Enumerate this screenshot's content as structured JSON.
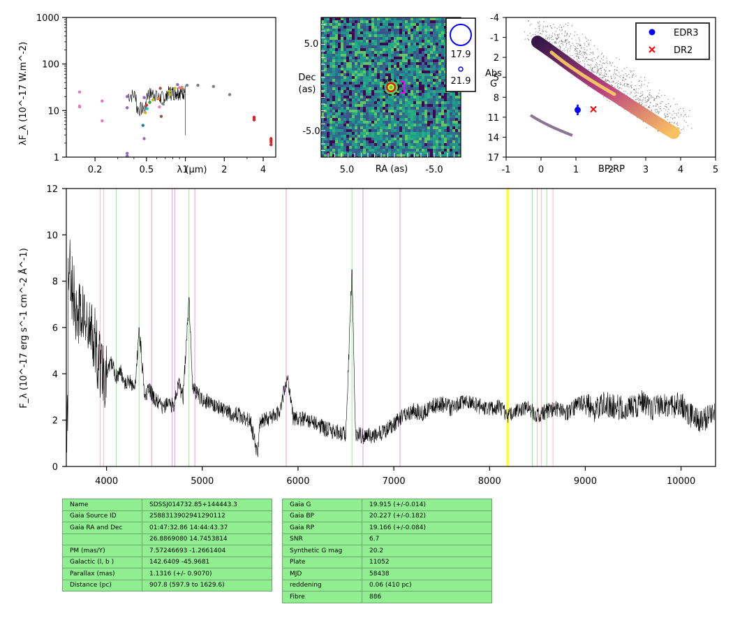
{
  "sed": {
    "ylabel": "λF_λ (10^-17 W.m^-2)",
    "xlabel": "λ (μm)",
    "xticks": [
      "0.2",
      "0.5",
      "1",
      "2",
      "4"
    ],
    "xtick_values": [
      0.2,
      0.5,
      1,
      2,
      4
    ],
    "yticks": [
      "1",
      "10",
      "100",
      "1000"
    ],
    "ytick_values": [
      1,
      10,
      100,
      1000
    ]
  },
  "image": {
    "ylabel": "Dec (as)",
    "xlabel": "RA (as)",
    "xticks": [
      "5.0",
      "-5.0"
    ],
    "yticks": [
      "5.0",
      "-5.0"
    ],
    "legend": [
      "17.9",
      "21.9"
    ]
  },
  "hrd": {
    "xlabel": "BP-RP",
    "ylabel": "Abs G",
    "xticks": [
      "-1",
      "0",
      "1",
      "2",
      "3",
      "4",
      "5"
    ],
    "yticks": [
      "-4",
      "-1",
      "2",
      "5",
      "8",
      "11",
      "14",
      "17"
    ],
    "legend": [
      "EDR3",
      "DR2"
    ],
    "colors": {
      "edr3": "#0000ff",
      "dr2": "#ff0000"
    }
  },
  "spectrum": {
    "ylabel": "F_λ (10^-17 erg s^-1 cm^-2 Å^-1)",
    "xticks": [
      "4000",
      "5000",
      "6000",
      "7000",
      "8000",
      "9000",
      "10000"
    ],
    "yticks": [
      "0",
      "2",
      "4",
      "6",
      "8",
      "10",
      "12"
    ]
  },
  "chart_data": [
    {
      "type": "scatter",
      "panel": "sed",
      "xscale": "log",
      "yscale": "log",
      "xlim": [
        0.12,
        5.0
      ],
      "ylim": [
        1,
        1000
      ],
      "points": [
        {
          "x": 0.152,
          "y": 25,
          "c": "#e377c2"
        },
        {
          "x": 0.152,
          "y": 12.5,
          "c": "#e377c2"
        },
        {
          "x": 0.152,
          "y": 12,
          "c": "#e377c2"
        },
        {
          "x": 0.227,
          "y": 16,
          "c": "#e377c2"
        },
        {
          "x": 0.227,
          "y": 6,
          "c": "#e377c2"
        },
        {
          "x": 0.355,
          "y": 20,
          "c": "#9467bd"
        },
        {
          "x": 0.355,
          "y": 11.5,
          "c": "#9467bd"
        },
        {
          "x": 0.355,
          "y": 1.2,
          "c": "#9467bd"
        },
        {
          "x": 0.355,
          "y": 1.05,
          "c": "#9467bd"
        },
        {
          "x": 0.47,
          "y": 4.8,
          "c": "#1f77b4"
        },
        {
          "x": 0.48,
          "y": 2.5,
          "c": "#9467bd"
        },
        {
          "x": 0.48,
          "y": 19,
          "c": "#9467bd"
        },
        {
          "x": 0.49,
          "y": 9,
          "c": "#bcbd22"
        },
        {
          "x": 0.5,
          "y": 13,
          "c": "#d62728"
        },
        {
          "x": 0.505,
          "y": 11,
          "c": "#17becf"
        },
        {
          "x": 0.53,
          "y": 15,
          "c": "#2ca02c"
        },
        {
          "x": 0.56,
          "y": 17,
          "c": "#bcbd22"
        },
        {
          "x": 0.62,
          "y": 18,
          "c": "#ff7f0e"
        },
        {
          "x": 0.63,
          "y": 12,
          "c": "#e377c2"
        },
        {
          "x": 0.64,
          "y": 30,
          "c": "#8c564b"
        },
        {
          "x": 0.65,
          "y": 7.5,
          "c": "#8c564b"
        },
        {
          "x": 0.67,
          "y": 14,
          "c": "#7f7f7f"
        },
        {
          "x": 0.75,
          "y": 26,
          "c": "#bcbd22"
        },
        {
          "x": 0.76,
          "y": 22,
          "c": "#bcbd22"
        },
        {
          "x": 0.83,
          "y": 30,
          "c": "#bcbd22"
        },
        {
          "x": 0.87,
          "y": 36,
          "c": "#9467bd"
        },
        {
          "x": 0.9,
          "y": 31,
          "c": "#e377c2"
        },
        {
          "x": 0.94,
          "y": 30,
          "c": "#ff7f0e"
        },
        {
          "x": 0.96,
          "y": 28,
          "c": "#7f7f7f"
        },
        {
          "x": 1.03,
          "y": 35,
          "c": "#7f7f7f"
        },
        {
          "x": 1.25,
          "y": 35,
          "c": "#7f7f7f"
        },
        {
          "x": 1.65,
          "y": 33,
          "c": "#7f7f7f"
        },
        {
          "x": 2.2,
          "y": 22,
          "c": "#7f7f7f"
        },
        {
          "x": 3.4,
          "y": 7.2,
          "c": "#d62728"
        },
        {
          "x": 3.4,
          "y": 6.8,
          "c": "#d62728"
        },
        {
          "x": 3.4,
          "y": 6.3,
          "c": "#d62728"
        },
        {
          "x": 4.6,
          "y": 2.5,
          "c": "#d62728"
        },
        {
          "x": 4.6,
          "y": 2.3,
          "c": "#d62728"
        },
        {
          "x": 4.6,
          "y": 2.1,
          "c": "#d62728"
        },
        {
          "x": 4.6,
          "y": 1.85,
          "c": "#d62728"
        }
      ]
    },
    {
      "type": "scatter",
      "panel": "hrd",
      "xlim": [
        -1,
        5
      ],
      "ylim": [
        17,
        -4
      ],
      "series": [
        {
          "name": "EDR3",
          "x": [
            1.05
          ],
          "y": [
            9.9
          ],
          "yerr": [
            0.8
          ],
          "marker": "circle",
          "color": "#0000ff"
        },
        {
          "name": "DR2",
          "x": [
            1.5
          ],
          "y": [
            9.8
          ],
          "marker": "x",
          "color": "#ff0000"
        }
      ]
    },
    {
      "type": "line",
      "panel": "spectrum",
      "xlim": [
        3580,
        10360
      ],
      "ylim": [
        0,
        12
      ],
      "x": [
        3600,
        3650,
        3700,
        3750,
        3800,
        3850,
        3900,
        3950,
        4000,
        4050,
        4100,
        4150,
        4200,
        4250,
        4300,
        4340,
        4400,
        4450,
        4500,
        4550,
        4600,
        4650,
        4700,
        4750,
        4800,
        4861,
        4900,
        5000,
        5100,
        5200,
        5300,
        5400,
        5500,
        5577,
        5600,
        5700,
        5800,
        5890,
        5950,
        6000,
        6100,
        6200,
        6300,
        6400,
        6500,
        6563,
        6600,
        6700,
        6800,
        6900,
        7000,
        7100,
        7200,
        7300,
        7400,
        7500,
        7600,
        7700,
        7800,
        7900,
        8000,
        8100,
        8200,
        8300,
        8400,
        8500,
        8600,
        8700,
        8800,
        8900,
        9000,
        9100,
        9200,
        9300,
        9400,
        9500,
        9600,
        9700,
        9800,
        9900,
        10000,
        10100,
        10200,
        10300
      ],
      "y": [
        9,
        7.5,
        6.3,
        6.8,
        5.6,
        5.9,
        4.8,
        4.4,
        3.9,
        4.5,
        3.9,
        4.1,
        3.6,
        3.7,
        3.4,
        6.0,
        3.1,
        3.3,
        2.9,
        2.7,
        2.5,
        2.8,
        2.6,
        3.6,
        3.0,
        7.3,
        3.4,
        2.9,
        2.7,
        2.5,
        2.3,
        2.2,
        2.0,
        0.5,
        1.9,
        2.1,
        2.3,
        3.9,
        2.1,
        2.1,
        2.0,
        1.8,
        1.6,
        1.5,
        1.4,
        8.5,
        1.4,
        1.3,
        1.35,
        1.5,
        1.8,
        2.2,
        2.4,
        2.3,
        2.6,
        2.7,
        2.5,
        2.8,
        2.7,
        2.6,
        2.5,
        2.6,
        2.2,
        2.4,
        2.5,
        2.2,
        2.4,
        2.5,
        2.3,
        2.6,
        2.8,
        2.4,
        2.7,
        2.6,
        2.5,
        2.6,
        2.8,
        2.5,
        2.7,
        2.6,
        2.7,
        2.2,
        1.9,
        2.2
      ],
      "lines": [
        {
          "x": 3934,
          "color": "#ffb6c1"
        },
        {
          "x": 3969,
          "color": "#ffb6c1"
        },
        {
          "x": 4102,
          "color": "#90ee90"
        },
        {
          "x": 4340,
          "color": "#90ee90"
        },
        {
          "x": 4471,
          "color": "#dda0dd"
        },
        {
          "x": 4686,
          "color": "#dda0dd"
        },
        {
          "x": 4713,
          "color": "#dda0dd"
        },
        {
          "x": 4861,
          "color": "#90ee90"
        },
        {
          "x": 4922,
          "color": "#dda0dd"
        },
        {
          "x": 5876,
          "color": "#dda0dd"
        },
        {
          "x": 6563,
          "color": "#90ee90"
        },
        {
          "x": 6678,
          "color": "#dda0dd"
        },
        {
          "x": 7065,
          "color": "#dda0dd"
        },
        {
          "x": 8183,
          "color": "#ffff00"
        },
        {
          "x": 8195,
          "color": "#ffff00"
        },
        {
          "x": 8446,
          "color": "#90ee90"
        },
        {
          "x": 8498,
          "color": "#ffb6c1"
        },
        {
          "x": 8542,
          "color": "#ffb6c1"
        },
        {
          "x": 8598,
          "color": "#90ee90"
        },
        {
          "x": 8662,
          "color": "#ffb6c1"
        }
      ]
    }
  ],
  "table_left": [
    {
      "k": "Name",
      "v": "SDSSJ014732.85+144443.3"
    },
    {
      "k": "Gaia Source ID",
      "v": "2588313902941290112"
    },
    {
      "k": "Gaia RA and Dec",
      "v": "01:47:32.86    14:44:43.37"
    },
    {
      "k": "",
      "v": "26.8869080    14.7453814"
    },
    {
      "k": "PM (mas/Y)",
      "v": "7.57246693    -1.2661404"
    },
    {
      "k": "Galactic (l, b )",
      "v": "142.6409    -45.9681"
    },
    {
      "k": "Parallax (mas)",
      "v": "1.1316 (+/- 0.9070)"
    },
    {
      "k": "Distance (pc)",
      "v": "907.8 (597.9 to 1629.6)"
    }
  ],
  "table_right": [
    {
      "k": "Gaia G",
      "v": "19.915 (+/-0.014)"
    },
    {
      "k": "Gaia BP",
      "v": "20.227 (+/-0.182)"
    },
    {
      "k": "Gaia RP",
      "v": "19.166 (+/-0.084)"
    },
    {
      "k": "SNR",
      "v": "6.7"
    },
    {
      "k": "Synthetic G mag",
      "v": "20.2"
    },
    {
      "k": "Plate",
      "v": "11052"
    },
    {
      "k": "MJD",
      "v": "58438"
    },
    {
      "k": "reddening",
      "v": "0.06 (410 pc)"
    },
    {
      "k": "Fibre",
      "v": "886"
    }
  ]
}
